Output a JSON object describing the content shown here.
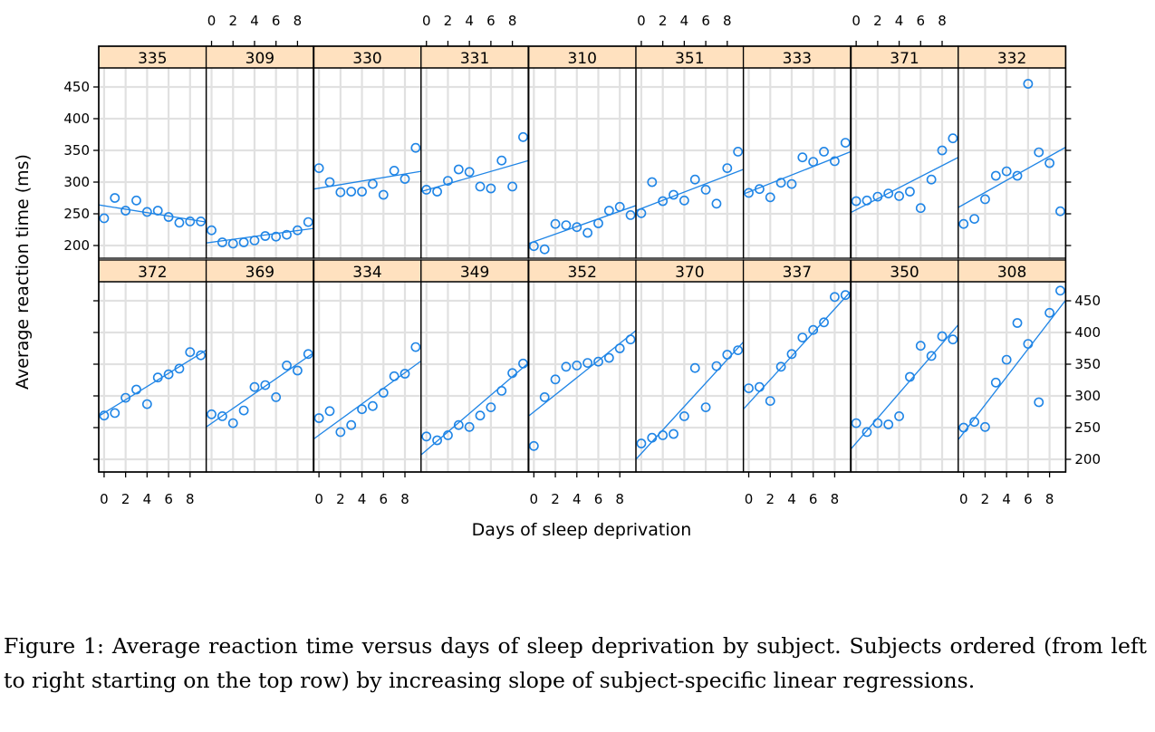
{
  "chart_data": {
    "type": "scatter",
    "xlabel": "Days of sleep deprivation",
    "ylabel": "Average reaction time (ms)",
    "xlim": [
      -0.5,
      9.5
    ],
    "ylim": [
      180,
      480
    ],
    "x_ticks": [
      0,
      2,
      4,
      6,
      8
    ],
    "y_ticks": [
      200,
      250,
      300,
      350,
      400,
      450
    ],
    "grid": true,
    "colors": {
      "points": "#1f85e6",
      "fit_line": "#1f85e6",
      "strip": "#ffe1bf",
      "grid": "#e1e1e1"
    },
    "days": [
      0,
      1,
      2,
      3,
      4,
      5,
      6,
      7,
      8,
      9
    ],
    "panels": [
      {
        "subject": "335",
        "reaction": [
          243,
          275,
          255,
          271,
          253,
          255,
          245,
          236,
          238,
          238
        ],
        "fit": [
          264,
          237
        ]
      },
      {
        "subject": "309",
        "reaction": [
          224,
          205,
          203,
          205,
          208,
          215,
          214,
          217,
          224,
          237
        ],
        "fit": [
          204,
          227
        ]
      },
      {
        "subject": "330",
        "reaction": [
          322,
          300,
          284,
          285,
          285,
          297,
          280,
          318,
          305,
          354
        ],
        "fit": [
          289,
          317
        ]
      },
      {
        "subject": "331",
        "reaction": [
          288,
          285,
          302,
          320,
          316,
          293,
          290,
          334,
          293,
          371
        ],
        "fit": [
          285,
          334
        ]
      },
      {
        "subject": "310",
        "reaction": [
          199,
          194,
          234,
          232,
          229,
          220,
          235,
          255,
          261,
          248
        ],
        "fit": [
          203,
          263
        ]
      },
      {
        "subject": "351",
        "reaction": [
          251,
          300,
          270,
          280,
          271,
          304,
          288,
          266,
          322,
          348
        ],
        "fit": [
          255,
          320
        ]
      },
      {
        "subject": "333",
        "reaction": [
          283,
          289,
          276,
          299,
          297,
          339,
          332,
          348,
          333,
          362
        ],
        "fit": [
          281,
          348
        ]
      },
      {
        "subject": "371",
        "reaction": [
          270,
          271,
          277,
          282,
          278,
          285,
          259,
          304,
          350,
          369
        ],
        "fit": [
          252,
          339
        ]
      },
      {
        "subject": "332",
        "reaction": [
          234,
          242,
          273,
          310,
          317,
          310,
          455,
          347,
          330,
          254
        ],
        "fit": [
          260,
          355
        ]
      },
      {
        "subject": "372",
        "reaction": [
          269,
          273,
          297,
          310,
          287,
          329,
          334,
          343,
          369,
          364
        ],
        "fit": [
          268,
          372
        ]
      },
      {
        "subject": "369",
        "reaction": [
          271,
          268,
          257,
          277,
          314,
          317,
          298,
          348,
          340,
          366
        ],
        "fit": [
          251,
          368
        ]
      },
      {
        "subject": "334",
        "reaction": [
          265,
          276,
          243,
          254,
          279,
          284,
          305,
          331,
          335,
          377
        ],
        "fit": [
          232,
          355
        ]
      },
      {
        "subject": "349",
        "reaction": [
          236,
          230,
          238,
          254,
          251,
          269,
          282,
          308,
          336,
          351
        ],
        "fit": [
          207,
          352
        ]
      },
      {
        "subject": "352",
        "reaction": [
          221,
          298,
          326,
          346,
          348,
          352,
          354,
          360,
          375,
          389
        ],
        "fit": [
          268,
          403
        ]
      },
      {
        "subject": "370",
        "reaction": [
          225,
          234,
          238,
          240,
          268,
          344,
          282,
          347,
          365,
          372
        ],
        "fit": [
          200,
          385
        ]
      },
      {
        "subject": "337",
        "reaction": [
          312,
          314,
          292,
          346,
          366,
          392,
          404,
          416,
          456,
          459
        ],
        "fit": [
          279,
          465
        ]
      },
      {
        "subject": "350",
        "reaction": [
          257,
          243,
          257,
          255,
          268,
          330,
          379,
          363,
          394,
          389
        ],
        "fit": [
          216,
          412
        ]
      },
      {
        "subject": "308",
        "reaction": [
          250,
          259,
          251,
          321,
          357,
          415,
          382,
          290,
          431,
          466
        ],
        "fit": [
          231,
          451
        ]
      }
    ]
  },
  "caption": "Figure 1: Average reaction time versus days of sleep deprivation by subject. Subjects ordered (from left to right starting on the top row) by increasing slope of subject-specific linear regressions."
}
